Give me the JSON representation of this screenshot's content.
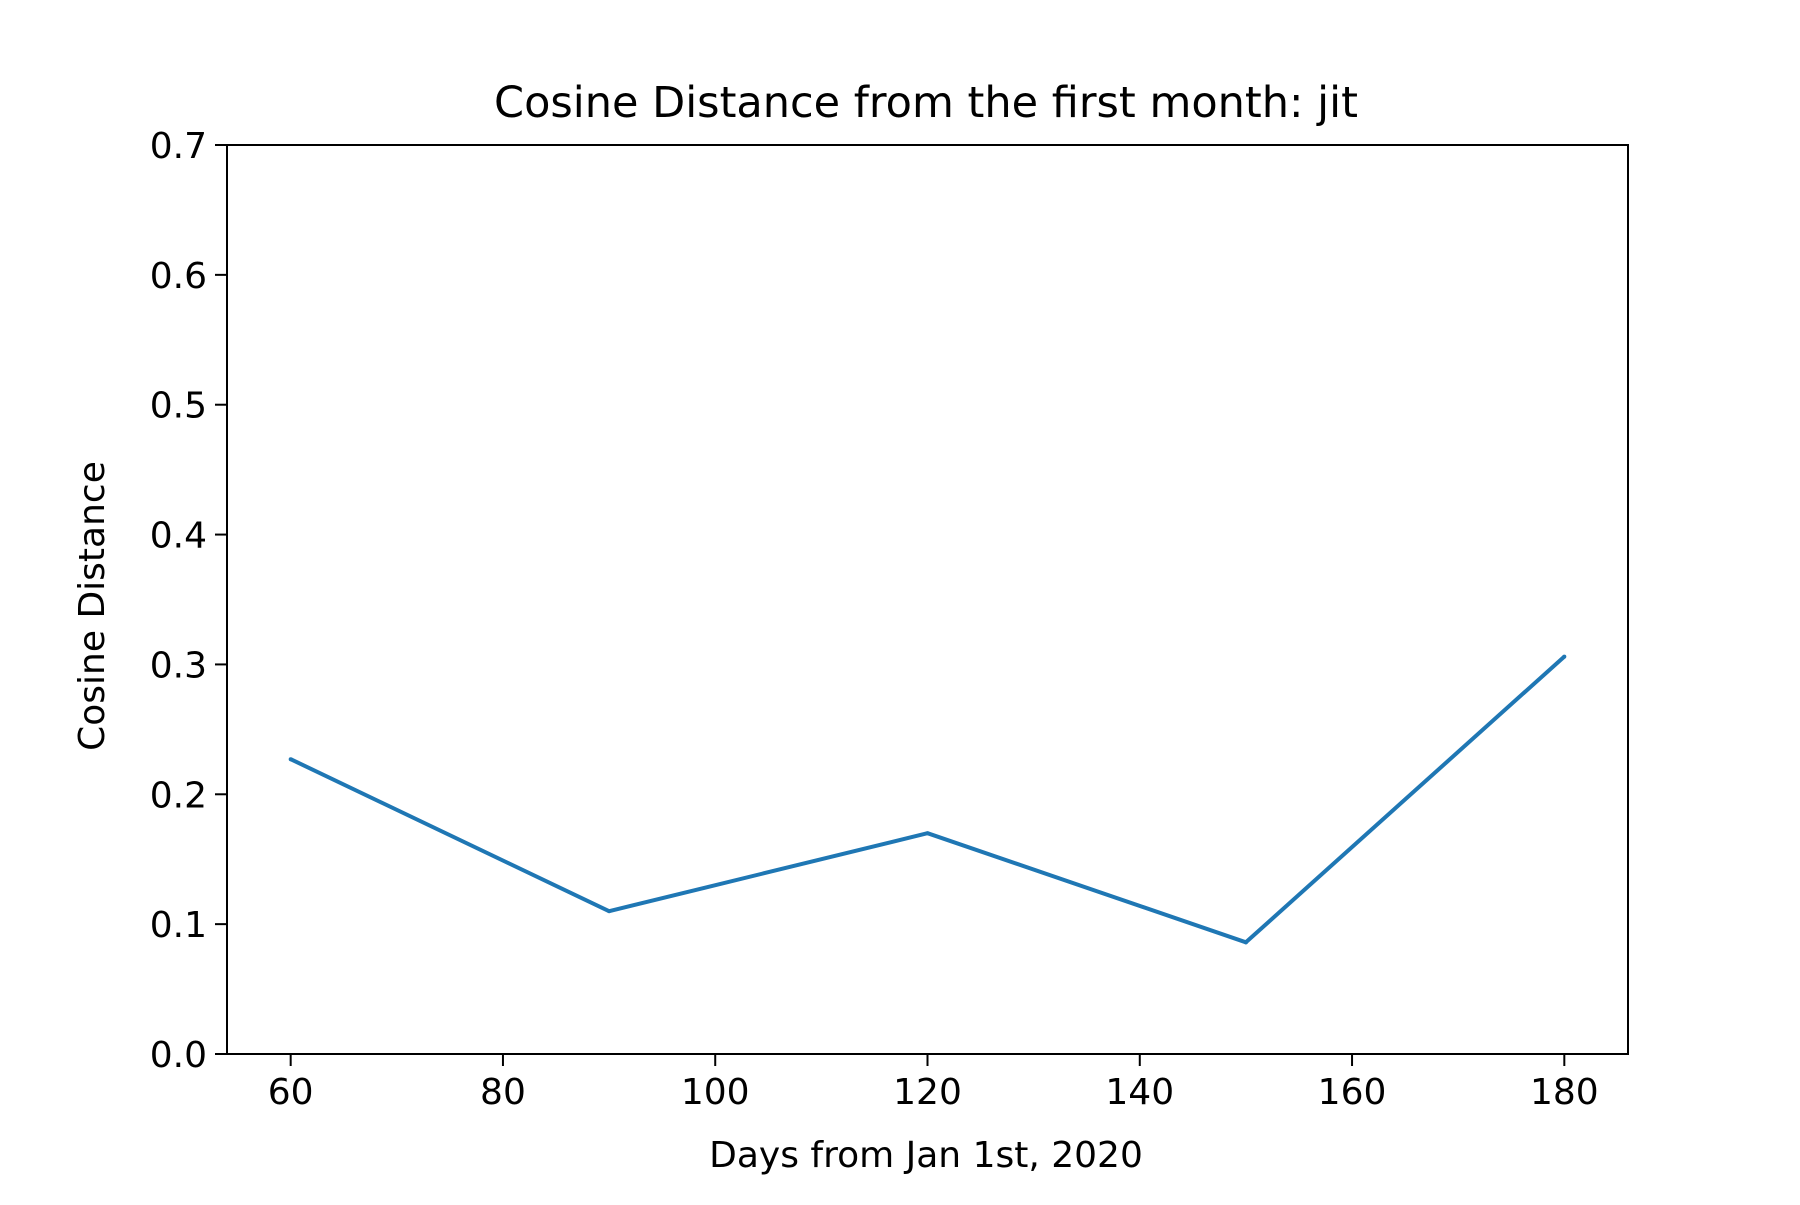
{
  "chart_data": {
    "type": "line",
    "title": "Cosine Distance from the first month: jit",
    "xlabel": "Days from Jan 1st, 2020",
    "ylabel": "Cosine Distance",
    "xlim": [
      54,
      186
    ],
    "ylim": [
      0.0,
      0.7
    ],
    "xticks": [
      60,
      80,
      100,
      120,
      140,
      160,
      180
    ],
    "xtick_labels": [
      "60",
      "80",
      "100",
      "120",
      "140",
      "160",
      "180"
    ],
    "yticks": [
      0.0,
      0.1,
      0.2,
      0.3,
      0.4,
      0.5,
      0.6,
      0.7
    ],
    "ytick_labels": [
      "0.0",
      "0.1",
      "0.2",
      "0.3",
      "0.4",
      "0.5",
      "0.6",
      "0.7"
    ],
    "grid": false,
    "series": [
      {
        "x": [
          60,
          90,
          120,
          150,
          180
        ],
        "y": [
          0.227,
          0.11,
          0.17,
          0.086,
          0.306
        ],
        "color": "#1f77b4"
      }
    ]
  }
}
